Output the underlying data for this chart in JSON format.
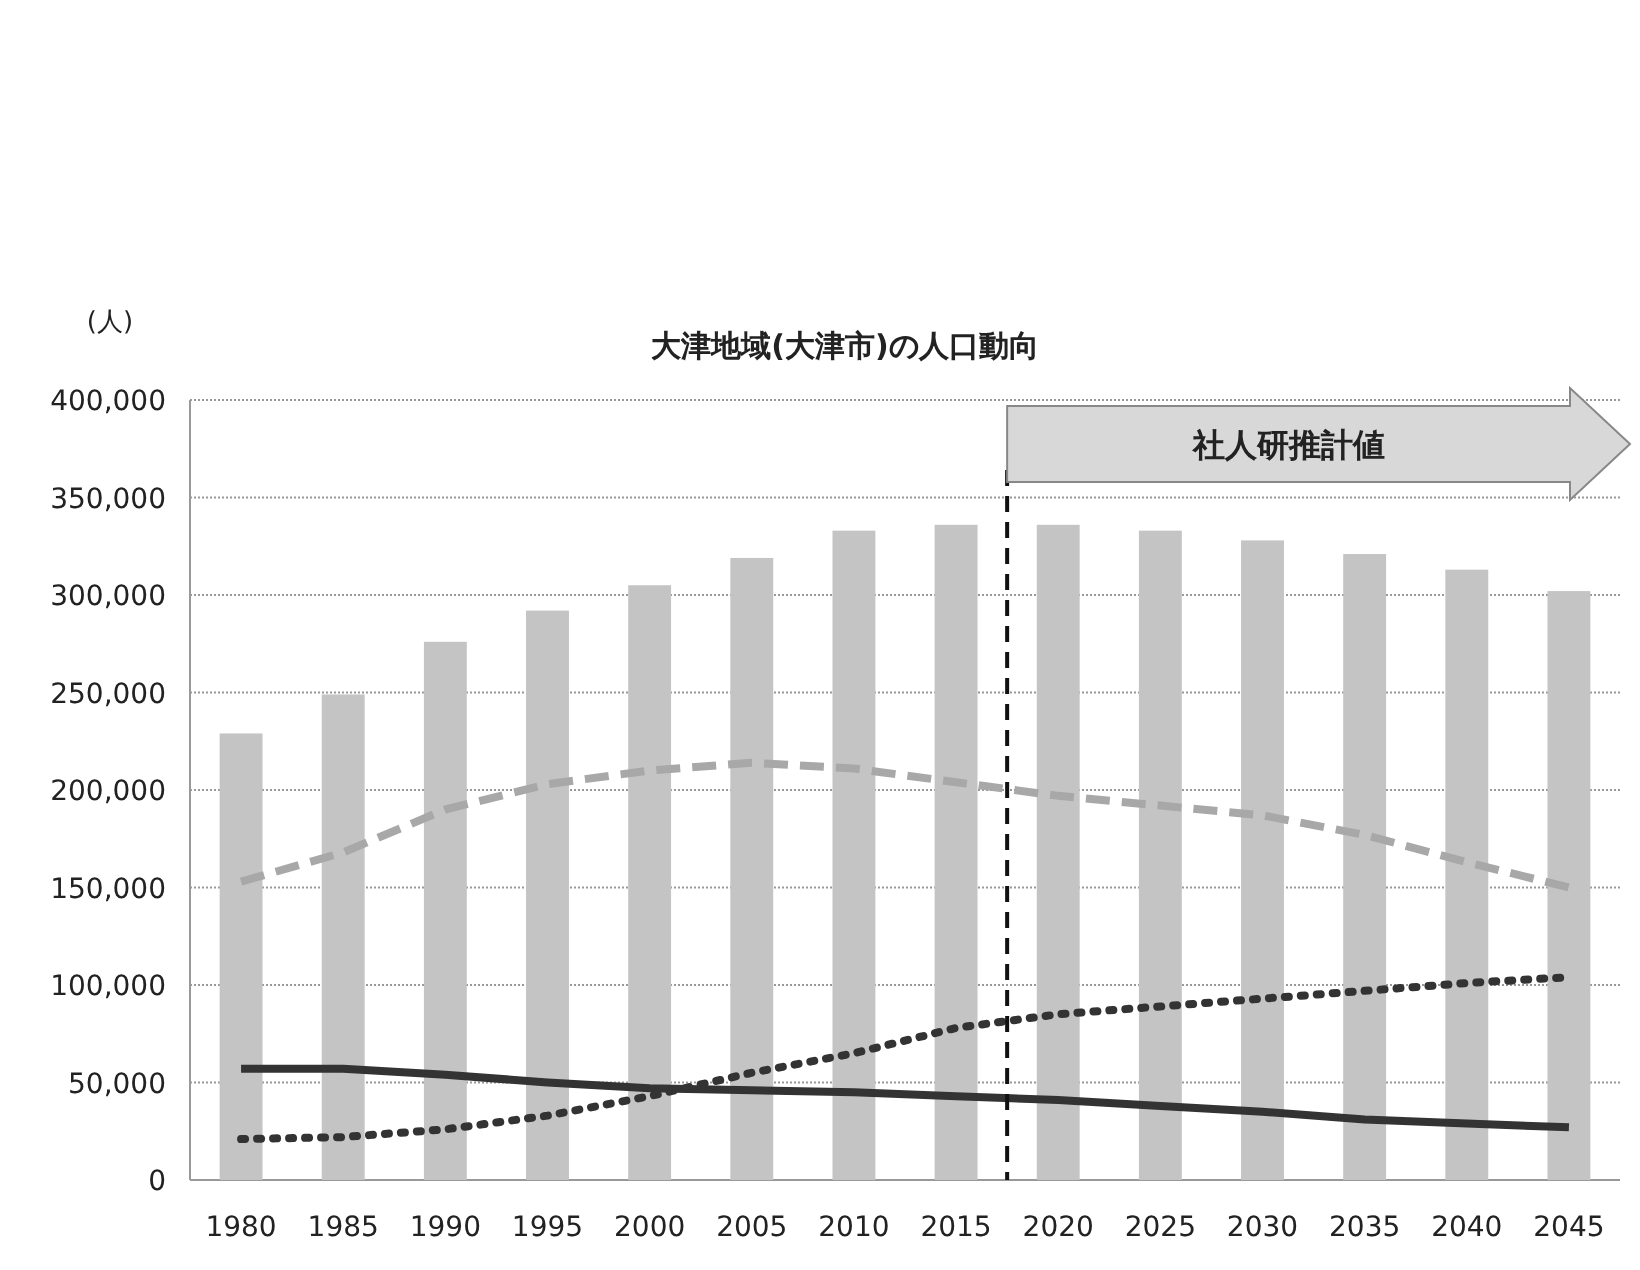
{
  "chart_data": {
    "type": "bar",
    "title": "大津地域(大津市)の人口動向",
    "ylabel": "(人)",
    "x": [
      1980,
      1985,
      1990,
      1995,
      2000,
      2005,
      2010,
      2015,
      2020,
      2025,
      2030,
      2035,
      2040,
      2045
    ],
    "xlim": [
      1977.5,
      2047.5
    ],
    "xticks": [
      1980,
      1985,
      1990,
      1995,
      2000,
      2005,
      2010,
      2015,
      2020,
      2025,
      2030,
      2035,
      2040,
      2045
    ],
    "ylim": [
      0,
      400000
    ],
    "yticks": [
      {
        "value": 0,
        "label": "0"
      },
      {
        "value": 50000,
        "label": "50,000"
      },
      {
        "value": 100000,
        "label": "100,000"
      },
      {
        "value": 150000,
        "label": "150,000"
      },
      {
        "value": 200000,
        "label": "200,000"
      },
      {
        "value": 250000,
        "label": "250,000"
      },
      {
        "value": 300000,
        "label": "300,000"
      },
      {
        "value": 350000,
        "label": "350,000"
      },
      {
        "value": 400000,
        "label": "400,000"
      }
    ],
    "grid": "y",
    "series": [
      {
        "color": "#c4c4c4",
        "values": [
          229000,
          249000,
          276000,
          292000,
          305000,
          319000,
          333000,
          336000,
          336000,
          333000,
          328000,
          321000,
          313000,
          302000
        ]
      },
      {
        "type": "line",
        "color": "#a8a8a8",
        "line_style": "dashed",
        "values": [
          153000,
          168000,
          190000,
          203000,
          210000,
          214000,
          211000,
          204000,
          197000,
          192000,
          187000,
          177000,
          163000,
          150000
        ]
      },
      {
        "type": "line",
        "color": "#333333",
        "line_style": "solid",
        "values": [
          57000,
          57000,
          54000,
          50000,
          47000,
          46000,
          45000,
          43000,
          41000,
          38000,
          35000,
          31000,
          29000,
          27000
        ]
      },
      {
        "type": "line",
        "color": "#333333",
        "line_style": "dotted",
        "values": [
          21000,
          22000,
          26000,
          33000,
          43000,
          55000,
          65000,
          78000,
          85000,
          89000,
          93000,
          97000,
          101000,
          104000
        ]
      }
    ],
    "ref_lines": [
      {
        "axis": "x",
        "value": 2017.5,
        "color": "#111111",
        "line_style": "dashed"
      }
    ],
    "annotations": [
      "社人研推計値"
    ]
  }
}
